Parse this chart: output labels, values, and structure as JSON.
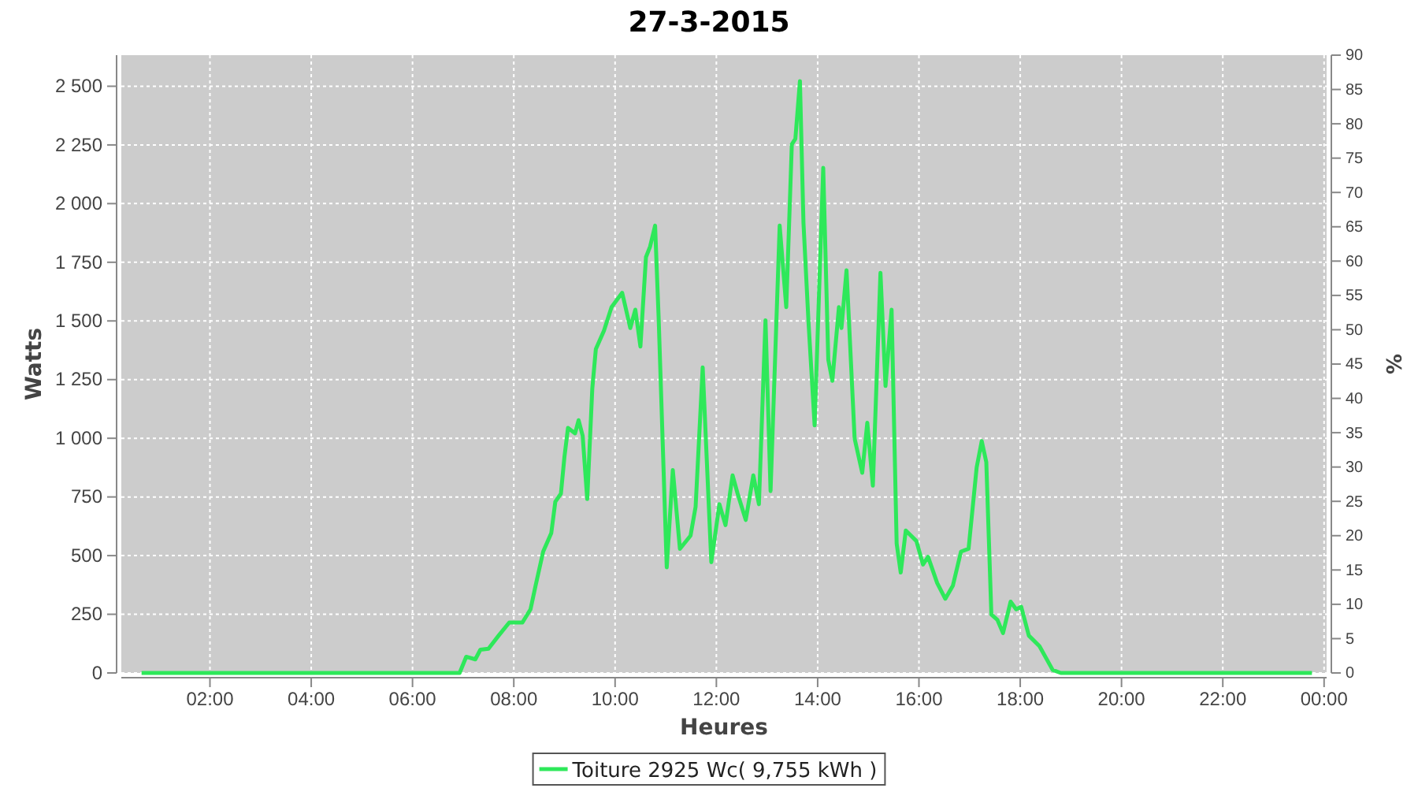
{
  "chart_data": {
    "type": "line",
    "title": "27-3-2015",
    "xlabel": "Heures",
    "ylabel": "Watts",
    "y2label": "%",
    "xlim": [
      0.25,
      24.05
    ],
    "xticks": [
      {
        "value": 2,
        "label": "02:00"
      },
      {
        "value": 4,
        "label": "04:00"
      },
      {
        "value": 6,
        "label": "06:00"
      },
      {
        "value": 8,
        "label": "08:00"
      },
      {
        "value": 10,
        "label": "10:00"
      },
      {
        "value": 12,
        "label": "12:00"
      },
      {
        "value": 14,
        "label": "14:00"
      },
      {
        "value": 16,
        "label": "16:00"
      },
      {
        "value": 18,
        "label": "18:00"
      },
      {
        "value": 20,
        "label": "20:00"
      },
      {
        "value": 22,
        "label": "22:00"
      },
      {
        "value": 24,
        "label": "00:00"
      }
    ],
    "ylim": [
      0,
      2632.5
    ],
    "yticks": [
      0,
      250,
      500,
      750,
      {
        "value": 1000,
        "label": "1 000"
      },
      {
        "value": 1250,
        "label": "1 250"
      },
      {
        "value": 1500,
        "label": "1 500"
      },
      {
        "value": 1750,
        "label": "1 750"
      },
      {
        "value": 2000,
        "label": "2 000"
      },
      {
        "value": 2250,
        "label": "2 250"
      },
      {
        "value": 2500,
        "label": "2 500"
      }
    ],
    "y2lim": [
      0,
      90
    ],
    "y2ticks": [
      0,
      5,
      10,
      15,
      20,
      25,
      30,
      35,
      40,
      45,
      50,
      55,
      60,
      65,
      70,
      75,
      80,
      85,
      90
    ],
    "grid": true,
    "legend": "bottom",
    "marker": "none",
    "line_style": "solid",
    "series": [
      {
        "name": "Toiture 2925 Wc( 9,755 kWh )",
        "color": "#2ee85a",
        "x": [
          0.65,
          6.72,
          6.93,
          7.06,
          7.24,
          7.34,
          7.5,
          7.7,
          7.91,
          8.17,
          8.33,
          8.43,
          8.58,
          8.74,
          8.82,
          8.93,
          9.0,
          9.07,
          9.21,
          9.28,
          9.36,
          9.45,
          9.55,
          9.62,
          9.78,
          9.93,
          10.14,
          10.3,
          10.4,
          10.5,
          10.61,
          10.69,
          10.79,
          10.86,
          11.02,
          11.14,
          11.28,
          11.49,
          11.59,
          11.73,
          11.9,
          12.06,
          12.18,
          12.32,
          12.42,
          12.58,
          12.73,
          12.84,
          12.97,
          13.07,
          13.25,
          13.38,
          13.49,
          13.56,
          13.65,
          13.72,
          13.82,
          13.94,
          14.11,
          14.21,
          14.29,
          14.42,
          14.47,
          14.57,
          14.73,
          14.88,
          14.98,
          15.09,
          15.24,
          15.34,
          15.46,
          15.56,
          15.64,
          15.74,
          15.95,
          16.08,
          16.18,
          16.36,
          16.52,
          16.67,
          16.83,
          16.98,
          17.14,
          17.24,
          17.33,
          17.43,
          17.55,
          17.66,
          17.81,
          17.92,
          18.02,
          18.17,
          18.38,
          18.64,
          18.8,
          23.76
        ],
        "values": [
          0,
          0,
          0,
          69,
          58,
          99,
          103,
          159,
          215,
          215,
          271,
          372,
          517,
          596,
          730,
          764,
          921,
          1044,
          1021,
          1077,
          1010,
          741,
          1212,
          1380,
          1458,
          1559,
          1620,
          1470,
          1548,
          1391,
          1772,
          1816,
          1906,
          1514,
          450,
          865,
          529,
          585,
          708,
          1302,
          472,
          719,
          630,
          842,
          764,
          652,
          842,
          719,
          1503,
          775,
          1906,
          1559,
          2253,
          2276,
          2522,
          1917,
          1492,
          1055,
          2152,
          1335,
          1245,
          1559,
          1470,
          1716,
          999,
          853,
          1066,
          798,
          1705,
          1223,
          1548,
          551,
          428,
          607,
          562,
          462,
          495,
          383,
          316,
          372,
          517,
          529,
          876,
          988,
          898,
          249,
          226,
          170,
          304,
          271,
          282,
          159,
          114,
          13,
          0,
          0
        ]
      }
    ]
  }
}
